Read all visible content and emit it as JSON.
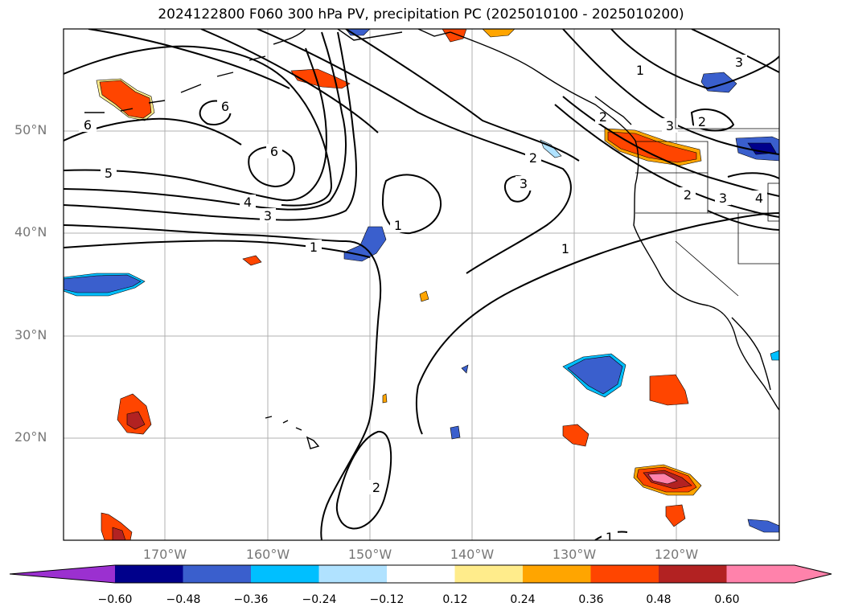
{
  "title": "2024122800 F060 300 hPa PV, precipitation PC (2025010100 - 2025010200)",
  "lat_labels": [
    "50°N",
    "40°N",
    "30°N",
    "20°N"
  ],
  "lon_labels": [
    "170°W",
    "160°W",
    "150°W",
    "140°W",
    "130°W",
    "120°W"
  ],
  "contour_labels": [
    "6",
    "6",
    "6",
    "5",
    "4",
    "3",
    "1",
    "1",
    "1",
    "1",
    "2",
    "2",
    "2",
    "3",
    "3",
    "3",
    "3",
    "4",
    "2",
    "2",
    "1"
  ],
  "colorbar": {
    "ticks": [
      "−0.60",
      "−0.48",
      "−0.36",
      "−0.24",
      "−0.12",
      "0.12",
      "0.24",
      "0.36",
      "0.48",
      "0.60"
    ],
    "colors": [
      "#9b30d0",
      "#00008b",
      "#3a5fcd",
      "#00bfff",
      "#b0e2ff",
      "#ffffff",
      "#ffec8b",
      "#ffa500",
      "#ff4500",
      "#b22222",
      "#ff82ab",
      "#ff82ab"
    ]
  },
  "colors": {
    "neg_extreme": "#00008b",
    "neg_strong": "#3a5fcd",
    "neg_mid": "#00bfff",
    "neg_weak": "#b0e2ff",
    "pos_weak": "#ffec8b",
    "pos_mid": "#ffa500",
    "pos_strong": "#ff4500",
    "pos_high": "#b22222",
    "pos_extreme": "#ff82ab"
  }
}
